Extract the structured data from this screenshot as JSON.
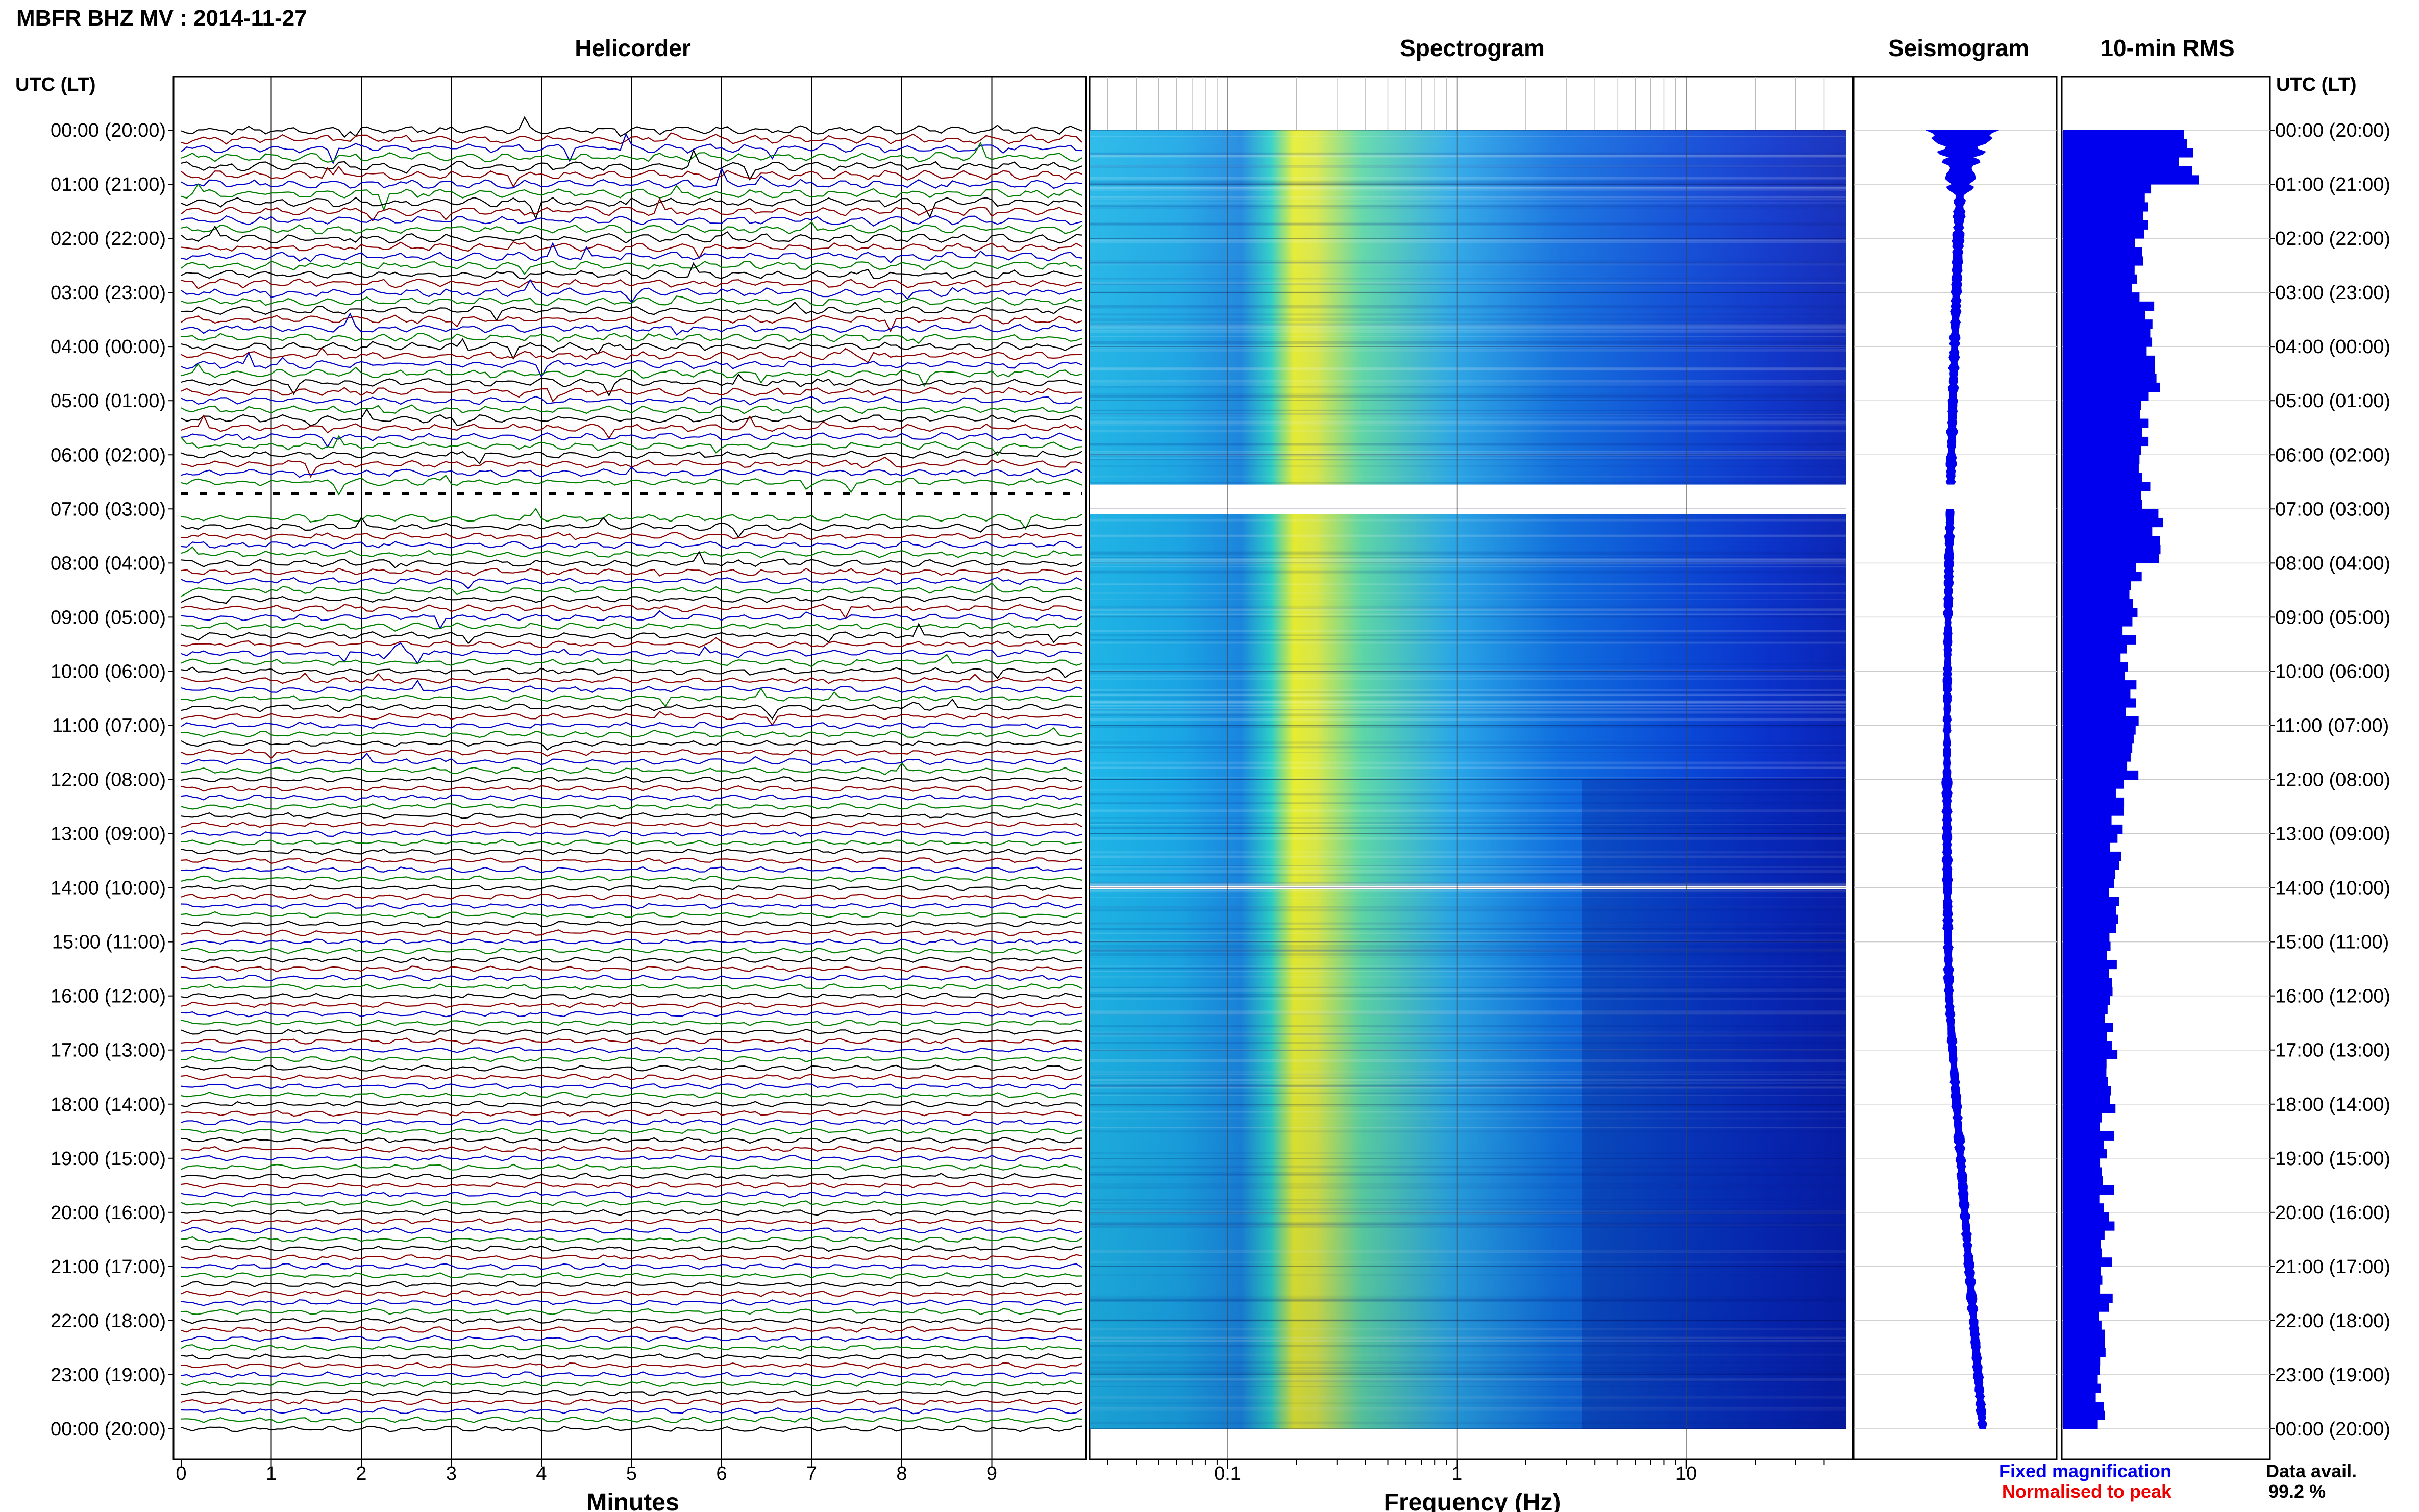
{
  "title": "MBFR BHZ MV : 2014-11-27",
  "panel_titles": {
    "helicorder": "Helicorder",
    "spectrogram": "Spectrogram",
    "seismogram": "Seismogram",
    "rms": "10-min RMS"
  },
  "axis": {
    "time_header_left": "UTC (LT)",
    "time_header_right": "UTC (LT)",
    "minutes_label": "Minutes",
    "frequency_label": "Frequency (Hz)"
  },
  "time_labels": [
    "00:00 (20:00)",
    "01:00 (21:00)",
    "02:00 (22:00)",
    "03:00 (23:00)",
    "04:00 (00:00)",
    "05:00 (01:00)",
    "06:00 (02:00)",
    "07:00 (03:00)",
    "08:00 (04:00)",
    "09:00 (05:00)",
    "10:00 (06:00)",
    "11:00 (07:00)",
    "12:00 (08:00)",
    "13:00 (09:00)",
    "14:00 (10:00)",
    "15:00 (11:00)",
    "16:00 (12:00)",
    "17:00 (13:00)",
    "18:00 (14:00)",
    "19:00 (15:00)",
    "20:00 (16:00)",
    "21:00 (17:00)",
    "22:00 (18:00)",
    "23:00 (19:00)",
    "00:00 (20:00)"
  ],
  "minute_ticks": [
    "0",
    "1",
    "2",
    "3",
    "4",
    "5",
    "6",
    "7",
    "8",
    "9"
  ],
  "frequency_ticks": [
    "0.1",
    "1",
    "10"
  ],
  "legend": {
    "fixed": "Fixed magnification",
    "normalised": "Normalised to peak",
    "fixed_color": "#0000ee",
    "normalised_color": "#ee0000"
  },
  "data_avail": {
    "label": "Data avail.",
    "value": "99.2 %"
  },
  "colors": {
    "trace_cycle": [
      "#000000",
      "#8b0000",
      "#0000cc",
      "#008000"
    ],
    "rms_bar": "#0000ee",
    "seismogram": "#0000ee"
  },
  "chart_data": {
    "type": "bar",
    "description_series": "10-min RMS (relative, 0-1), hourly means",
    "hours_utc": [
      0,
      1,
      2,
      3,
      4,
      5,
      6,
      7,
      8,
      9,
      10,
      11,
      12,
      13,
      14,
      15,
      16,
      17,
      18,
      19,
      20,
      21,
      22,
      23
    ],
    "rms_relative": [
      0.95,
      0.6,
      0.55,
      0.62,
      0.66,
      0.62,
      0.6,
      0.68,
      0.52,
      0.48,
      0.5,
      0.5,
      0.4,
      0.37,
      0.36,
      0.36,
      0.35,
      0.35,
      0.33,
      0.32,
      0.32,
      0.32,
      0.32,
      0.3
    ],
    "data_gaps_utc": [
      "06:33-06:59",
      "13:59-14:00"
    ],
    "xlim_minutes": [
      0,
      10
    ],
    "frequency_range_hz": [
      0.025,
      50
    ],
    "frequency_scale": "log",
    "spectral_peak_hz": 0.22
  }
}
